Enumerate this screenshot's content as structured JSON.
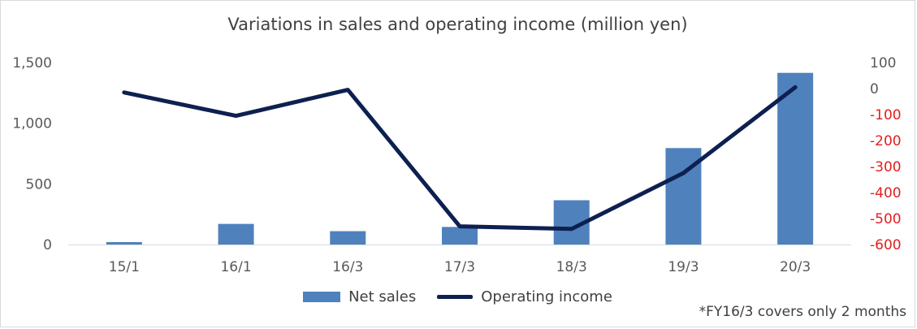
{
  "chart_data": {
    "type": "bar",
    "title": "Variations in sales and operating income (million yen)",
    "categories": [
      "15/1",
      "16/1",
      "16/3",
      "17/3",
      "18/3",
      "19/3",
      "20/3"
    ],
    "series": [
      {
        "name": "Net sales",
        "type": "bar",
        "axis": "left",
        "color": "#4f81bd",
        "values": [
          20,
          170,
          110,
          145,
          365,
          795,
          1415
        ]
      },
      {
        "name": "Operating income",
        "type": "line",
        "axis": "right",
        "color": "#0d2050",
        "values": [
          -15,
          -105,
          -5,
          -530,
          -540,
          -325,
          5
        ]
      }
    ],
    "left_axis": {
      "min": 0,
      "max": 1500,
      "ticks": [
        "0",
        "500",
        "1,000",
        "1,500"
      ]
    },
    "right_axis": {
      "min": -600,
      "max": 100,
      "ticks": [
        {
          "label": "100",
          "value": 100
        },
        {
          "label": "0",
          "value": 0
        },
        {
          "label": "-100",
          "value": -100
        },
        {
          "label": "-200",
          "value": -200
        },
        {
          "label": "-300",
          "value": -300
        },
        {
          "label": "-400",
          "value": -400
        },
        {
          "label": "-500",
          "value": -500
        },
        {
          "label": "-600",
          "value": -600
        }
      ],
      "negative_color": "#e02020"
    },
    "grid": false,
    "legend_position": "bottom"
  },
  "legend": {
    "net_sales": "Net sales",
    "operating_income": "Operating income"
  },
  "footnote": "*FY16/3 covers only 2 months"
}
